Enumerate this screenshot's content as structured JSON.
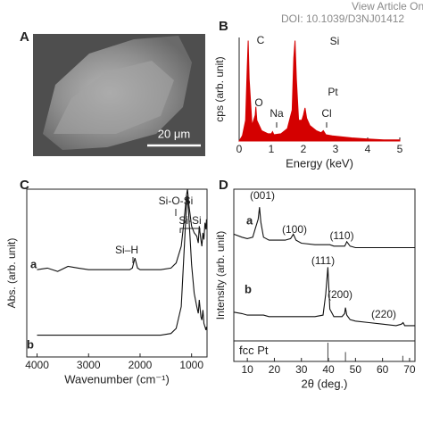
{
  "header": {
    "line1": "View Article Onlin",
    "line2": "DOI: 10.1039/D3NJ01412"
  },
  "image": {
    "panel": "A",
    "scale_bar": "20 μm"
  },
  "chart_data": [
    {
      "type": "area",
      "panel": "B",
      "xlabel": "Energy (keV)",
      "ylabel": "cps (arb. unit)",
      "xlim": [
        0,
        5
      ],
      "xticks": [
        0,
        1,
        2,
        3,
        4,
        5
      ],
      "ylim": [
        0,
        100
      ],
      "frame": false,
      "x": [
        0,
        0.1,
        0.2,
        0.25,
        0.28,
        0.31,
        0.4,
        0.5,
        0.52,
        0.55,
        0.7,
        0.9,
        1.0,
        1.04,
        1.08,
        1.3,
        1.5,
        1.65,
        1.7,
        1.74,
        1.78,
        1.85,
        1.95,
        2.0,
        2.05,
        2.1,
        2.2,
        2.4,
        2.55,
        2.62,
        2.7,
        2.9,
        3.2,
        3.5,
        4,
        4.5,
        5
      ],
      "series": [
        {
          "color": "#d40000",
          "values": [
            0,
            5,
            20,
            70,
            97,
            60,
            15,
            25,
            33,
            20,
            10,
            7,
            7,
            9,
            6,
            7,
            12,
            30,
            80,
            97,
            60,
            20,
            20,
            25,
            32,
            22,
            15,
            10,
            8,
            10,
            6,
            5,
            4,
            3,
            2,
            1,
            1
          ]
        }
      ],
      "annotations": [
        "C",
        "O",
        "Na",
        "Si",
        "Pt",
        "Cl"
      ]
    },
    {
      "type": "line",
      "panel": "C",
      "xlabel": "Wavenumber (cm⁻¹)",
      "ylabel": "Abs. (arb. unit)",
      "xlim": [
        4200,
        700
      ],
      "xticks": [
        4000,
        3000,
        2000,
        1000
      ],
      "ylim": [
        0,
        100
      ],
      "frame": true,
      "x": [
        4000,
        3800,
        3600,
        3400,
        3200,
        3000,
        2800,
        2600,
        2400,
        2200,
        2150,
        2100,
        2050,
        2000,
        1800,
        1600,
        1400,
        1300,
        1200,
        1150,
        1100,
        1080,
        1050,
        1000,
        950,
        900,
        870,
        850,
        820,
        800,
        780,
        760,
        740,
        720,
        710
      ],
      "series": [
        {
          "name": "a",
          "color": "#111111",
          "values": [
            52,
            53,
            51,
            54,
            53,
            52,
            52,
            52,
            52,
            52,
            53,
            59,
            53,
            52,
            52,
            52,
            53,
            56,
            66,
            80,
            96,
            100,
            90,
            78,
            74,
            72,
            68,
            78,
            70,
            66,
            74,
            70,
            80,
            76,
            82
          ]
        },
        {
          "name": "b",
          "color": "#111111",
          "values": [
            13,
            13,
            13,
            13,
            13,
            13,
            13,
            13,
            13,
            13,
            13,
            13,
            13,
            13,
            13,
            13,
            14,
            17,
            30,
            60,
            90,
            96,
            82,
            55,
            38,
            30,
            26,
            34,
            24,
            22,
            28,
            20,
            18,
            16,
            18
          ]
        }
      ],
      "annotations": [
        "Si–H",
        "Si-O-Si",
        "Si-Si"
      ]
    },
    {
      "type": "line",
      "panel": "D",
      "xlabel": "2θ (deg.)",
      "ylabel": "Intensity (arb. unit)",
      "xlim": [
        5,
        72
      ],
      "xticks": [
        10,
        20,
        30,
        40,
        50,
        60,
        70
      ],
      "ylim": [
        0,
        100
      ],
      "frame": true,
      "x": [
        5,
        8,
        10,
        12,
        13,
        14,
        14.5,
        15,
        16,
        18,
        20,
        24,
        26,
        27,
        28,
        30,
        35,
        38,
        39,
        39.8,
        40.5,
        42,
        45,
        46,
        46.3,
        46.8,
        48,
        50,
        55,
        60,
        65,
        67,
        67.6,
        68.2,
        70,
        72
      ],
      "series": [
        {
          "name": "a",
          "color": "#111111",
          "values": [
            70,
            68,
            67,
            68,
            74,
            80,
            88,
            78,
            68,
            66,
            66,
            66,
            67,
            70,
            66,
            64,
            63,
            63,
            63,
            63,
            63,
            62,
            62,
            62,
            63,
            65,
            62,
            61,
            61,
            61,
            61,
            61,
            61,
            61,
            61,
            61
          ]
        },
        {
          "name": "b",
          "color": "#111111",
          "values": [
            18,
            17,
            16,
            16,
            16,
            16,
            16,
            16,
            16,
            15,
            15,
            15,
            15,
            15,
            15,
            15,
            15,
            16,
            30,
            48,
            20,
            15,
            15,
            17,
            21,
            16,
            13,
            12,
            11,
            10,
            9,
            10,
            11,
            9,
            9,
            9
          ]
        }
      ],
      "annotations": [
        "(001)",
        "(100)",
        "(110)",
        "(111)",
        "(200)",
        "(220)"
      ],
      "reference": {
        "name": "fcc Pt",
        "color": "#444444",
        "ylim": [
          0,
          100
        ],
        "x": [
          39.8,
          46.3,
          67.5
        ],
        "values": [
          100,
          50,
          30
        ]
      }
    }
  ]
}
